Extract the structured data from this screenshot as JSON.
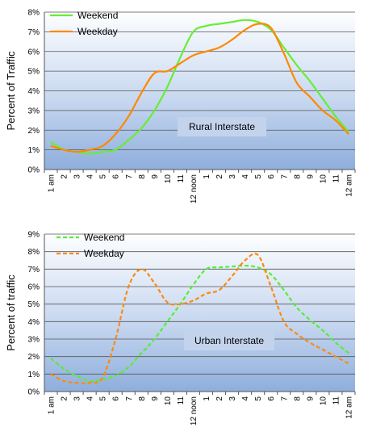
{
  "chart_data": [
    {
      "type": "line",
      "annotation": "Rural Interstate",
      "ylabel": "Percent of Traffic",
      "xlabel": "",
      "ylim": [
        0,
        8
      ],
      "ytick_labels": [
        "0%",
        "1%",
        "2%",
        "3%",
        "4%",
        "5%",
        "6%",
        "7%",
        "8%"
      ],
      "categories": [
        "1 am",
        "2",
        "3",
        "4",
        "5",
        "6",
        "7",
        "8",
        "9",
        "10",
        "11",
        "12 noon",
        "1",
        "2",
        "3",
        "4",
        "5",
        "6",
        "7",
        "8",
        "9",
        "10",
        "11",
        "12 am"
      ],
      "grid": true,
      "legend_position": "top-left",
      "series": [
        {
          "name": "Weekend",
          "color": "#66ee33",
          "dash": "solid",
          "values": [
            1.4,
            1.0,
            0.9,
            0.8,
            0.9,
            1.0,
            1.5,
            2.1,
            3.0,
            4.2,
            5.7,
            7.0,
            7.3,
            7.4,
            7.5,
            7.6,
            7.5,
            7.1,
            6.2,
            5.3,
            4.5,
            3.6,
            2.7,
            1.9
          ]
        },
        {
          "name": "Weekday",
          "color": "#ff8800",
          "dash": "solid",
          "values": [
            1.2,
            1.0,
            0.9,
            1.0,
            1.2,
            1.8,
            2.7,
            3.9,
            4.9,
            5.0,
            5.4,
            5.8,
            6.0,
            6.2,
            6.6,
            7.1,
            7.4,
            7.2,
            5.9,
            4.4,
            3.7,
            3.0,
            2.5,
            1.8
          ]
        }
      ]
    },
    {
      "type": "line",
      "annotation": "Urban Interstate",
      "ylabel": "Percent of traffic",
      "xlabel": "",
      "ylim": [
        0,
        9
      ],
      "ytick_labels": [
        "0%",
        "1%",
        "2%",
        "3%",
        "4%",
        "5%",
        "6%",
        "7%",
        "8%",
        "9%"
      ],
      "categories": [
        "1 am",
        "2",
        "3",
        "4",
        "5",
        "6",
        "7",
        "8",
        "9",
        "10",
        "11",
        "12 noon",
        "1",
        "2",
        "3",
        "4",
        "5",
        "6",
        "7",
        "8",
        "9",
        "10",
        "11",
        "12 am"
      ],
      "grid": true,
      "legend_position": "top-left",
      "series": [
        {
          "name": "Weekend",
          "color": "#55ee33",
          "dash": "dashed",
          "values": [
            1.9,
            1.3,
            0.9,
            0.6,
            0.7,
            0.9,
            1.4,
            2.2,
            3.0,
            4.0,
            5.0,
            6.1,
            7.0,
            7.1,
            7.15,
            7.2,
            7.1,
            6.7,
            5.8,
            4.8,
            4.1,
            3.5,
            2.8,
            2.2
          ]
        },
        {
          "name": "Weekday",
          "color": "#ff8811",
          "dash": "dashed",
          "values": [
            1.0,
            0.6,
            0.5,
            0.5,
            0.8,
            3.0,
            6.0,
            7.0,
            6.2,
            5.1,
            5.0,
            5.2,
            5.6,
            5.8,
            6.6,
            7.5,
            7.8,
            6.0,
            4.0,
            3.3,
            2.8,
            2.4,
            2.0,
            1.6
          ]
        }
      ]
    }
  ]
}
